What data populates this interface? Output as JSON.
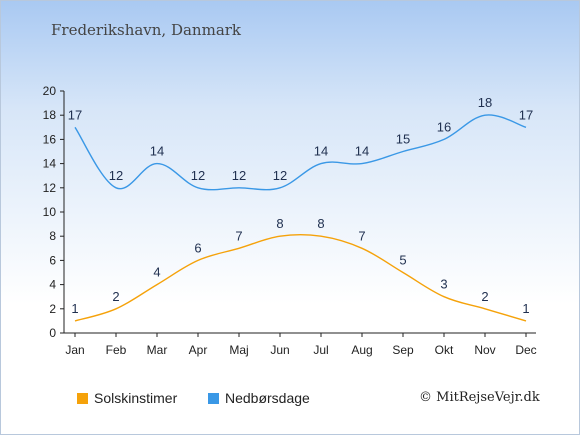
{
  "title": "Frederikshavn, Danmark",
  "credit": "© MitRejseVejr.dk",
  "chart_data": {
    "type": "line",
    "categories": [
      "Jan",
      "Feb",
      "Mar",
      "Apr",
      "Maj",
      "Jun",
      "Jul",
      "Aug",
      "Sep",
      "Okt",
      "Nov",
      "Dec"
    ],
    "ylim": [
      0,
      20
    ],
    "yticks": [
      0,
      2,
      4,
      6,
      8,
      10,
      12,
      14,
      16,
      18,
      20
    ],
    "grid": false,
    "legend_position": "bottom",
    "series": [
      {
        "name": "Solskinstimer",
        "color": "#f5a20a",
        "values": [
          1,
          2,
          4,
          6,
          7,
          8,
          8,
          7,
          5,
          3,
          2,
          1
        ]
      },
      {
        "name": "Nedbørsdage",
        "color": "#3a98e6",
        "values": [
          17,
          12,
          14,
          12,
          12,
          12,
          14,
          14,
          15,
          16,
          18,
          17
        ]
      }
    ]
  }
}
